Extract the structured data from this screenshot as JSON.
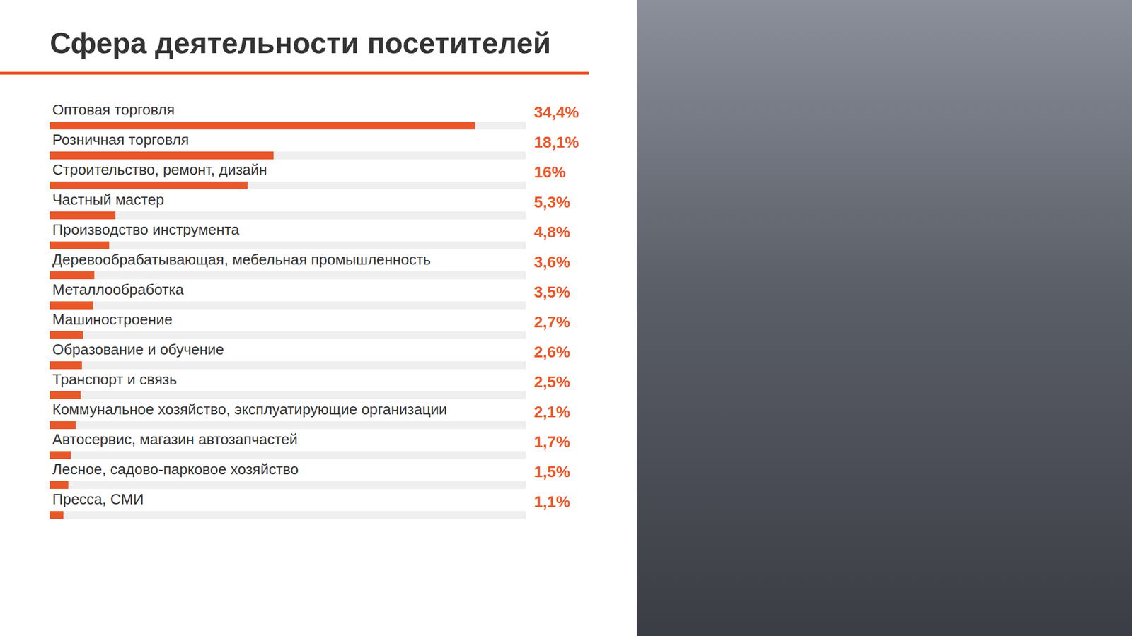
{
  "chart_data": {
    "type": "bar",
    "orientation": "horizontal",
    "title": "Сфера деятельности посетителей",
    "categories": [
      "Оптовая торговля",
      "Розничная торговля",
      "Строительство, ремонт, дизайн",
      "Частный мастер",
      "Производство инструмента",
      "Деревообрабатывающая, мебельная промышленность",
      "Металлообработка",
      "Машиностроение",
      "Образование и обучение",
      "Транспорт и связь",
      "Коммунальное хозяйство, эксплуатирующие организации",
      "Автосервис, магазин автозапчастей",
      "Лесное, садово-парковое хозяйство",
      "Пресса, СМИ"
    ],
    "values": [
      34.4,
      18.1,
      16,
      5.3,
      4.8,
      3.6,
      3.5,
      2.7,
      2.6,
      2.5,
      2.1,
      1.7,
      1.5,
      1.1
    ],
    "value_labels": [
      "34,4%",
      "18,1%",
      "16%",
      "5,3%",
      "4,8%",
      "3,6%",
      "3,5%",
      "2,7%",
      "2,6%",
      "2,5%",
      "2,1%",
      "1,7%",
      "1,5%",
      "1,1%"
    ],
    "color": "#e8582a",
    "xlim": [
      0,
      38.5
    ],
    "data_labels": true,
    "tick_labels": false,
    "grid": false
  }
}
